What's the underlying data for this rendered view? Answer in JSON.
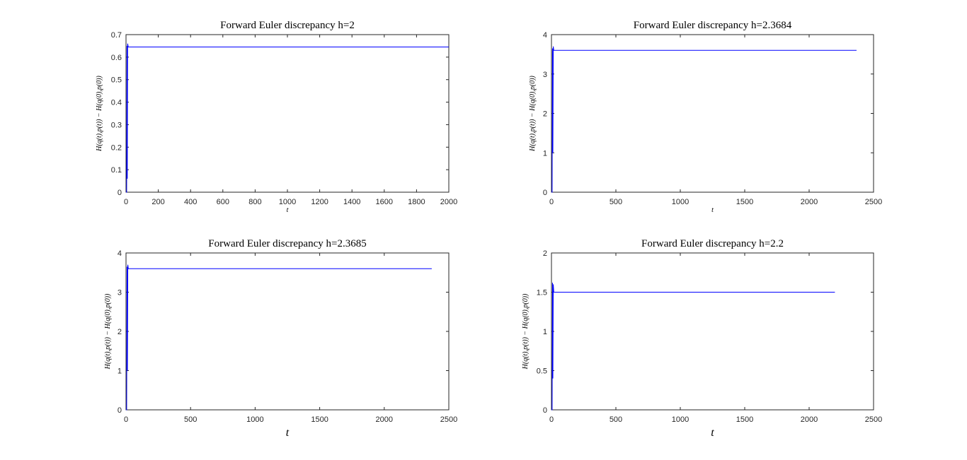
{
  "figure": {
    "background": "#ffffff",
    "axis_color": "#262626",
    "series_color": "#0000ff"
  },
  "chart_data": [
    {
      "type": "line",
      "title": "Forward Euler discrepancy h=2",
      "xlabel": "t",
      "ylabel": "H(q(t),p(t)) − H(q(0),p(0))",
      "xlim": [
        0,
        2000
      ],
      "ylim": [
        0,
        0.7
      ],
      "xticks": [
        0,
        200,
        400,
        600,
        800,
        1000,
        1200,
        1400,
        1600,
        1800,
        2000
      ],
      "xtick_labels": [
        "0",
        "200",
        "400",
        "600",
        "800",
        "1000",
        "1200",
        "1400",
        "1600",
        "1800",
        "2000"
      ],
      "yticks": [
        0,
        0.1,
        0.2,
        0.3,
        0.4,
        0.5,
        0.6,
        0.7
      ],
      "ytick_labels": [
        "0",
        "0.1",
        "0.2",
        "0.3",
        "0.4",
        "0.5",
        "0.6",
        "0.7"
      ],
      "grid": false,
      "series": [
        {
          "x": [
            0,
            4,
            6,
            8,
            10,
            14,
            2000
          ],
          "y": [
            0,
            0,
            0.65,
            0.06,
            0.66,
            0.645,
            0.645
          ]
        }
      ]
    },
    {
      "type": "line",
      "title": "Forward Euler discrepancy h=2.3684",
      "xlabel": "t",
      "ylabel": "H(q(t),p(t)) − H(q(0),p(0))",
      "xlim": [
        0,
        2500
      ],
      "ylim": [
        0,
        4
      ],
      "xticks": [
        0,
        500,
        1000,
        1500,
        2000,
        2500
      ],
      "xtick_labels": [
        "0",
        "500",
        "1000",
        "1500",
        "2000",
        "2500"
      ],
      "yticks": [
        0,
        1,
        2,
        3,
        4
      ],
      "ytick_labels": [
        "0",
        "1",
        "2",
        "3",
        "4"
      ],
      "grid": false,
      "series": [
        {
          "x": [
            0,
            5,
            8,
            11,
            14,
            18,
            2368
          ],
          "y": [
            0,
            0,
            3.65,
            1.0,
            3.7,
            3.6,
            3.6
          ]
        }
      ]
    },
    {
      "type": "line",
      "title": "Forward Euler discrepancy h=2.3685",
      "xlabel": "t",
      "ylabel": "H(q(t),p(t)) − H(q(0),p(0))",
      "xlim": [
        0,
        2500
      ],
      "ylim": [
        0,
        4
      ],
      "xticks": [
        0,
        500,
        1000,
        1500,
        2000,
        2500
      ],
      "xtick_labels": [
        "0",
        "500",
        "1000",
        "1500",
        "2000",
        "2500"
      ],
      "yticks": [
        0,
        1,
        2,
        3,
        4
      ],
      "ytick_labels": [
        "0",
        "1",
        "2",
        "3",
        "4"
      ],
      "grid": false,
      "series": [
        {
          "x": [
            0,
            5,
            8,
            11,
            14,
            18,
            2368
          ],
          "y": [
            0,
            0,
            3.65,
            1.0,
            3.7,
            3.6,
            3.6
          ]
        }
      ]
    },
    {
      "type": "line",
      "title": "Forward Euler discrepancy h=2.2",
      "xlabel": "t",
      "ylabel": "H(q(t),p(t)) − H(q(0),p(0))",
      "xlim": [
        0,
        2500
      ],
      "ylim": [
        0,
        2
      ],
      "xticks": [
        0,
        500,
        1000,
        1500,
        2000,
        2500
      ],
      "xtick_labels": [
        "0",
        "500",
        "1000",
        "1500",
        "2000",
        "2500"
      ],
      "yticks": [
        0,
        0.5,
        1,
        1.5,
        2
      ],
      "ytick_labels": [
        "0",
        "0.5",
        "1",
        "1.5",
        "2"
      ],
      "grid": false,
      "series": [
        {
          "x": [
            0,
            5,
            8,
            11,
            14,
            18,
            2200
          ],
          "y": [
            0,
            0,
            1.62,
            0.4,
            1.6,
            1.5,
            1.5
          ]
        }
      ]
    }
  ]
}
